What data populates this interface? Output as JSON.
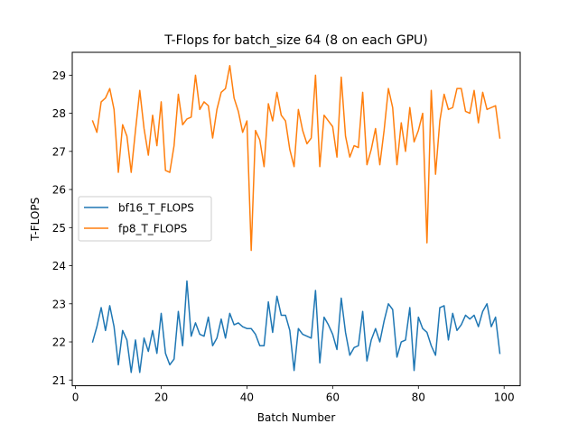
{
  "chart_data": {
    "type": "line",
    "title": "T-Flops for batch_size 64 (8 on each GPU)",
    "xlabel": "Batch Number",
    "ylabel": "T-FLOPS",
    "xlim": [
      -0.75,
      103.75
    ],
    "ylim": [
      20.85,
      29.6
    ],
    "xticks": [
      0,
      20,
      40,
      60,
      80,
      100
    ],
    "yticks": [
      21,
      22,
      23,
      24,
      25,
      26,
      27,
      28,
      29
    ],
    "legend_position": "center-left",
    "x": [
      4,
      5,
      6,
      7,
      8,
      9,
      10,
      11,
      12,
      13,
      14,
      15,
      16,
      17,
      18,
      19,
      20,
      21,
      22,
      23,
      24,
      25,
      26,
      27,
      28,
      29,
      30,
      31,
      32,
      33,
      34,
      35,
      36,
      37,
      38,
      39,
      40,
      41,
      42,
      43,
      44,
      45,
      46,
      47,
      48,
      49,
      50,
      51,
      52,
      53,
      54,
      55,
      56,
      57,
      58,
      59,
      60,
      61,
      62,
      63,
      64,
      65,
      66,
      67,
      68,
      69,
      70,
      71,
      72,
      73,
      74,
      75,
      76,
      77,
      78,
      79,
      80,
      81,
      82,
      83,
      84,
      85,
      86,
      87,
      88,
      89,
      90,
      91,
      92,
      93,
      94,
      95,
      96,
      97,
      98,
      99
    ],
    "series": [
      {
        "name": "bf16_T_FLOPS",
        "color": "#1f77b4",
        "values": [
          22.0,
          22.4,
          22.9,
          22.3,
          22.95,
          22.4,
          21.4,
          22.3,
          22.05,
          21.2,
          22.05,
          21.2,
          22.1,
          21.75,
          22.3,
          21.7,
          22.75,
          21.7,
          21.4,
          21.55,
          22.8,
          21.9,
          23.6,
          22.15,
          22.5,
          22.2,
          22.15,
          22.65,
          21.9,
          22.1,
          22.6,
          22.1,
          22.75,
          22.45,
          22.5,
          22.4,
          22.35,
          22.35,
          22.2,
          21.9,
          21.9,
          23.05,
          22.25,
          23.2,
          22.7,
          22.7,
          22.3,
          21.25,
          22.35,
          22.2,
          22.15,
          22.1,
          23.35,
          21.45,
          22.65,
          22.45,
          22.2,
          21.8,
          23.15,
          22.25,
          21.65,
          21.85,
          21.9,
          22.8,
          21.5,
          22.05,
          22.35,
          22.0,
          22.55,
          23.0,
          22.85,
          21.6,
          22.0,
          22.05,
          22.9,
          21.25,
          22.65,
          22.35,
          22.25,
          21.9,
          21.65,
          22.9,
          22.95,
          22.05,
          22.75,
          22.3,
          22.45,
          22.7,
          22.6,
          22.7,
          22.4,
          22.8,
          23.0,
          22.4,
          22.65,
          21.7
        ]
      },
      {
        "name": "fp8_T_FLOPS",
        "color": "#ff7f0e",
        "values": [
          27.8,
          27.5,
          28.3,
          28.4,
          28.65,
          28.1,
          26.45,
          27.7,
          27.4,
          26.45,
          27.55,
          28.6,
          27.6,
          26.9,
          27.95,
          27.15,
          28.3,
          26.5,
          26.45,
          27.15,
          28.5,
          27.7,
          27.85,
          27.9,
          29.0,
          28.1,
          28.3,
          28.2,
          27.35,
          28.1,
          28.55,
          28.65,
          29.25,
          28.4,
          28.05,
          27.5,
          27.8,
          24.4,
          27.55,
          27.3,
          26.6,
          28.25,
          27.8,
          28.55,
          27.95,
          27.8,
          27.05,
          26.6,
          28.1,
          27.55,
          27.2,
          27.35,
          29.0,
          26.6,
          27.95,
          27.8,
          27.65,
          26.85,
          28.95,
          27.4,
          26.85,
          27.15,
          27.1,
          28.55,
          26.65,
          27.05,
          27.6,
          26.65,
          27.55,
          28.65,
          28.15,
          26.65,
          27.75,
          27.0,
          28.15,
          27.25,
          27.55,
          28.0,
          24.6,
          28.6,
          26.4,
          27.8,
          28.5,
          28.1,
          28.15,
          28.65,
          28.65,
          28.05,
          28.0,
          28.6,
          27.75,
          28.55,
          28.1,
          28.15,
          28.2,
          27.35
        ]
      }
    ]
  }
}
